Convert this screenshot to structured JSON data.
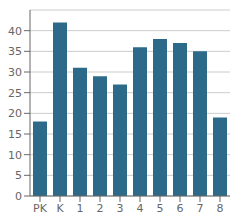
{
  "chart_data": {
    "type": "bar",
    "categories": [
      "PK",
      "K",
      "1",
      "2",
      "3",
      "4",
      "5",
      "6",
      "7",
      "8"
    ],
    "values": [
      18,
      42,
      31,
      29,
      27,
      36,
      38,
      37,
      35,
      19
    ],
    "color": "#2d6a8a",
    "ylim": [
      0,
      45
    ],
    "yticks": [
      0,
      5,
      10,
      15,
      20,
      25,
      30,
      35,
      40
    ],
    "grid": true
  }
}
